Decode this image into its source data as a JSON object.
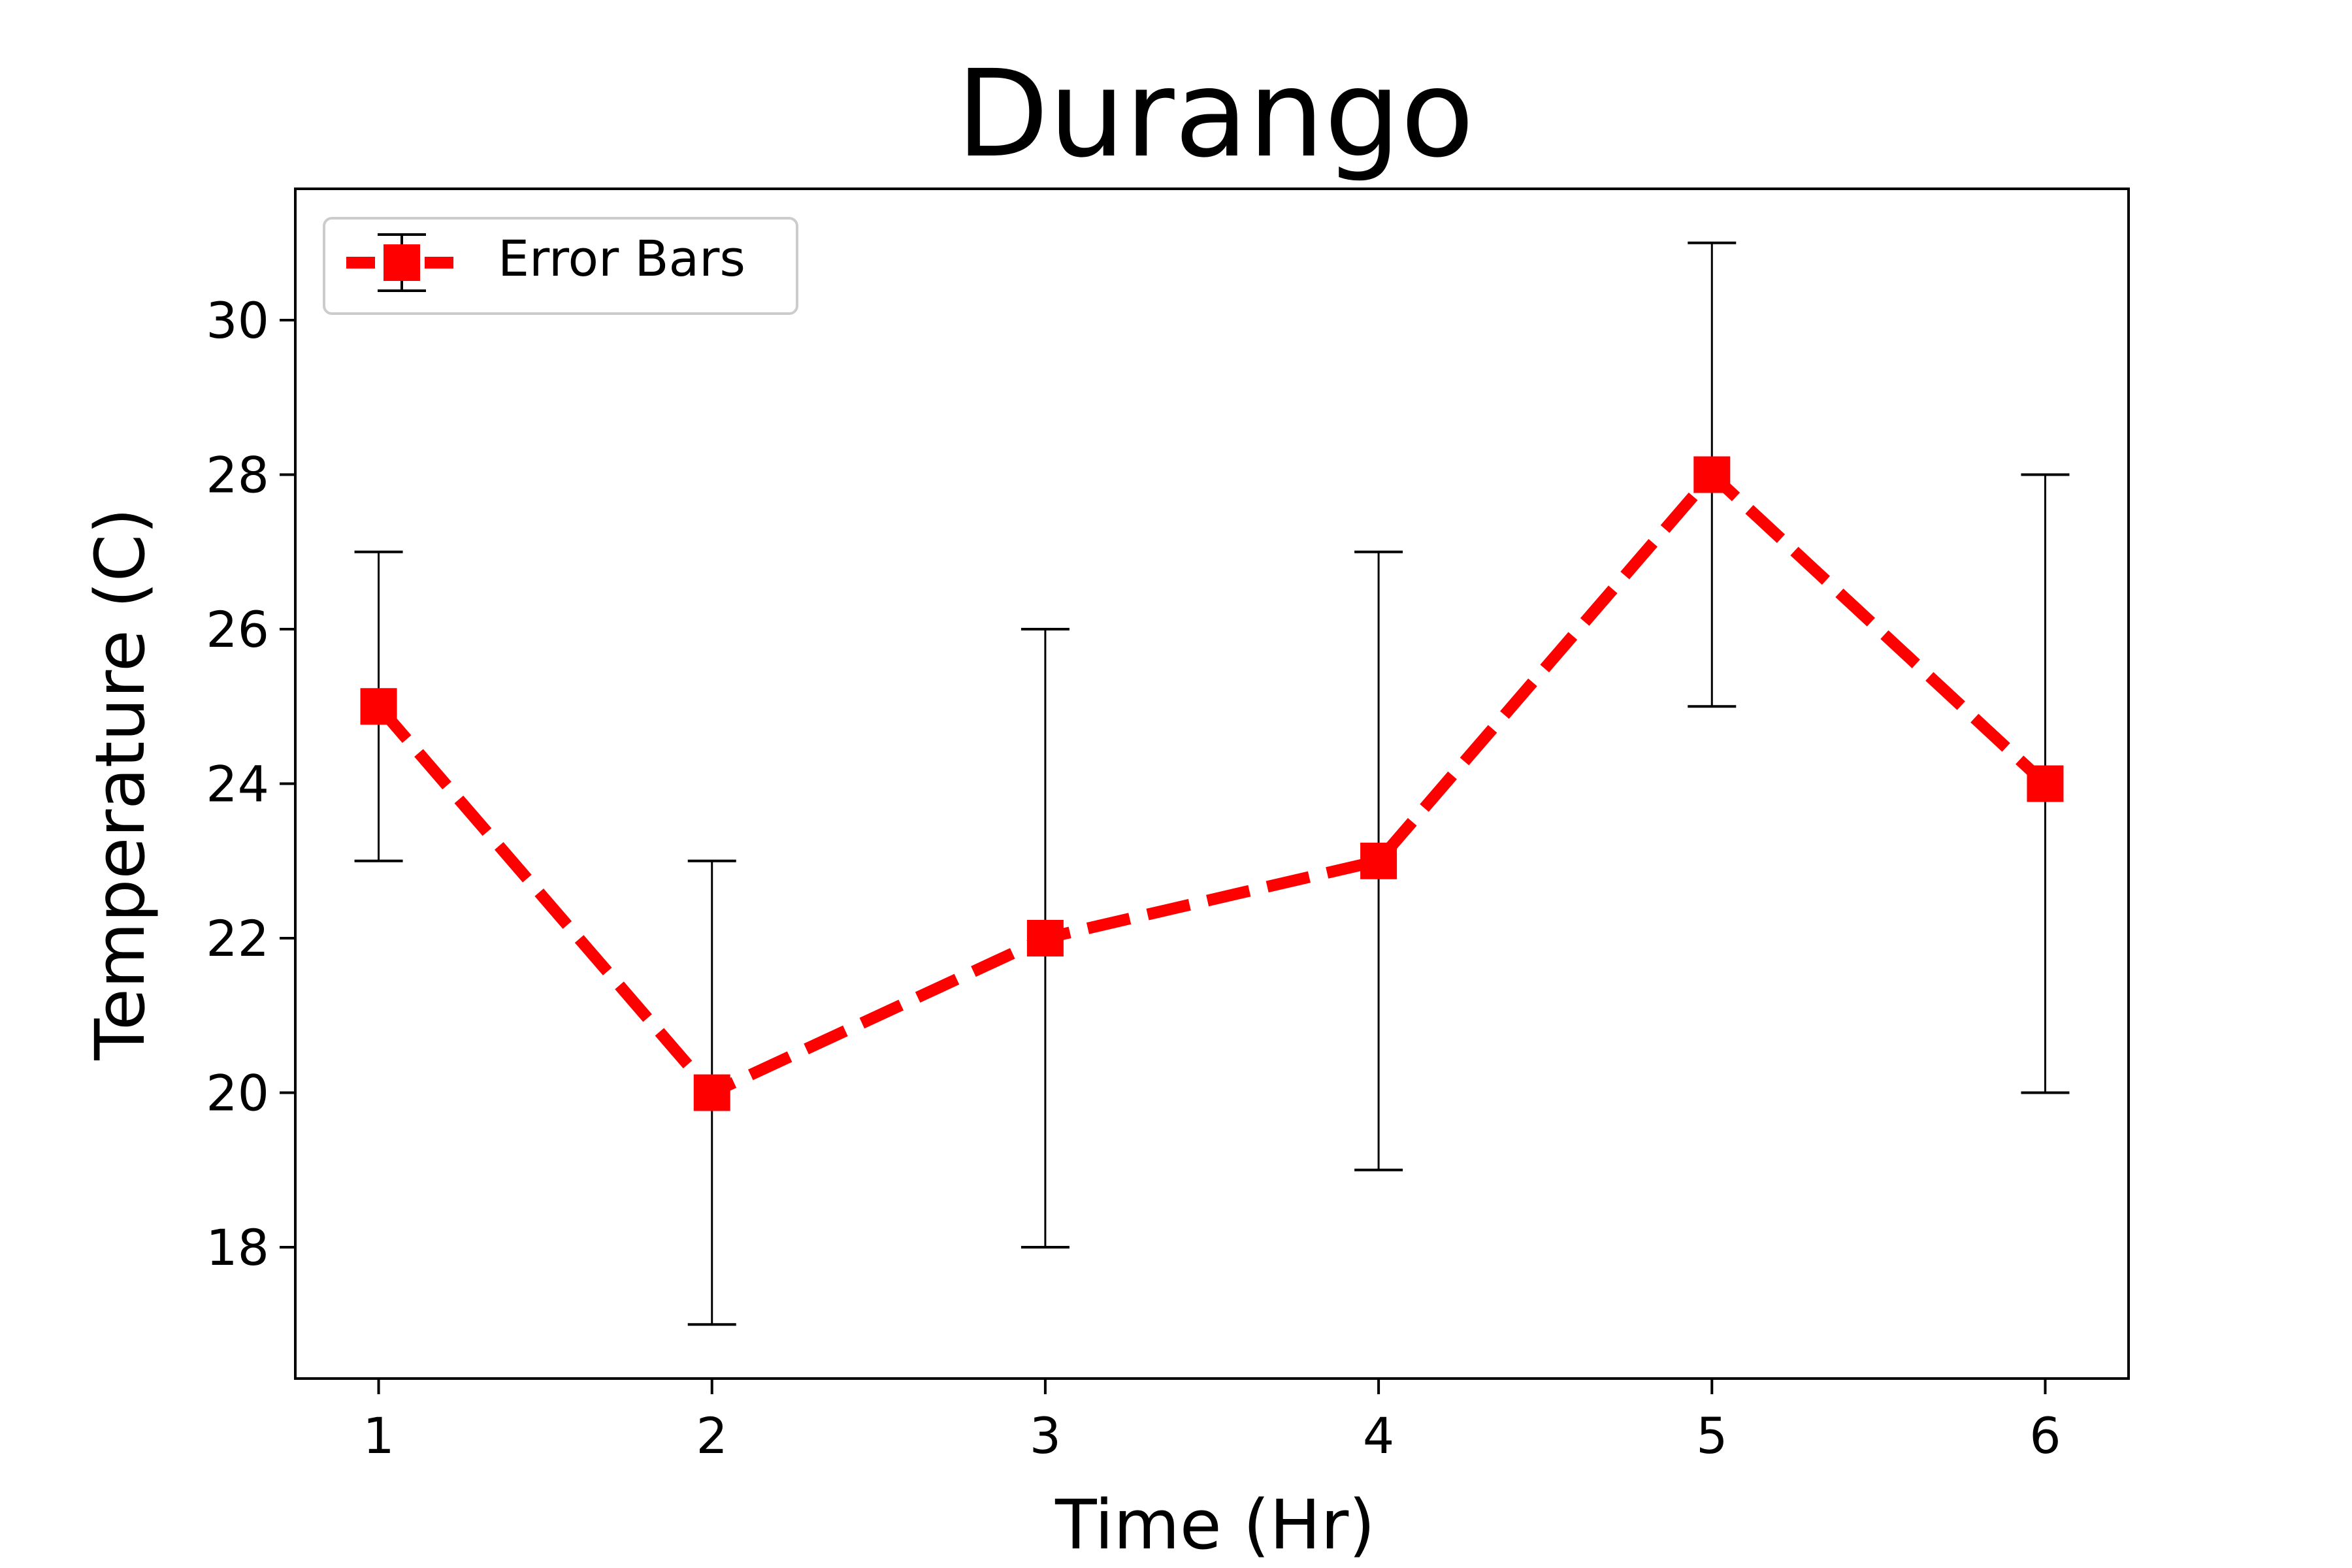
{
  "chart_data": {
    "type": "line",
    "title": "Durango",
    "xlabel": "Time (Hr)",
    "ylabel": "Temperature (C)",
    "x": [
      1,
      2,
      3,
      4,
      5,
      6
    ],
    "xticks": [
      1,
      2,
      3,
      4,
      5,
      6
    ],
    "yticks": [
      18,
      20,
      22,
      24,
      26,
      28,
      30
    ],
    "xlim": [
      0.75,
      6.25
    ],
    "ylim": [
      16.3,
      31.7
    ],
    "grid": false,
    "legend_position": "top-left",
    "series": [
      {
        "name": "Error Bars",
        "values": [
          25,
          20,
          22,
          23,
          28,
          24
        ],
        "errors": [
          2,
          3,
          4,
          4,
          3,
          4
        ],
        "color": "#ff0000",
        "line_style": "dashed",
        "marker": "square",
        "error_color": "#000000"
      }
    ]
  }
}
